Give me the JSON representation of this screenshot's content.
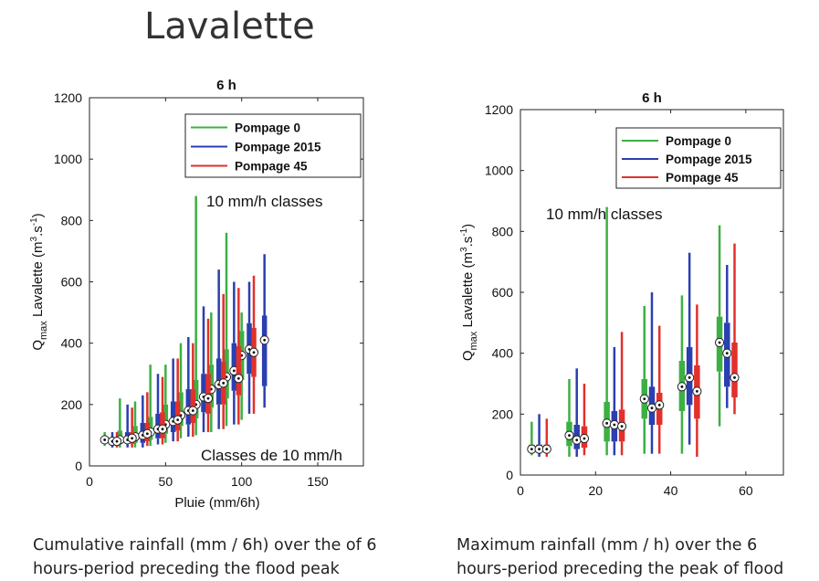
{
  "main_title": "Lavalette",
  "captions": {
    "left": [
      "Cumulative rainfall (mm / 6h) over the of 6",
      "hours-period preceding the  flood peak"
    ],
    "right": [
      "Maximum rainfall (mm / h) over the 6",
      "hours-period preceding the peak of flood"
    ]
  },
  "colors": {
    "Pompage 0": "#3cb043",
    "Pompage 2015": "#2a3fb0",
    "Pompage 45": "#e2302b"
  },
  "chart_data": [
    {
      "type": "box",
      "title": "6 h",
      "xlabel": "Pluie (mm/6h)",
      "ylabel_main": "Q",
      "ylabel_sub": "max",
      "ylabel_rest": " Lavalette (m",
      "ylabel_sup1": "3",
      "ylabel_mid": ".s",
      "ylabel_sup2": "-1",
      "ylabel_end": ")",
      "xlim": [
        0,
        180
      ],
      "ylim": [
        0,
        1200
      ],
      "xticks": [
        0,
        50,
        100,
        150
      ],
      "yticks": [
        0,
        200,
        400,
        600,
        800,
        1000,
        1200
      ],
      "annotations": [
        "10 mm/h classes",
        "Classes de 10 mm/h"
      ],
      "legend": {
        "placement": "top-right",
        "entries": [
          "Pompage 0",
          "Pompage 2015",
          "Pompage 45"
        ]
      },
      "series": [
        {
          "name": "Pompage 0",
          "boxes": [
            {
              "x": 10,
              "min": 65,
              "q1": 75,
              "median": 85,
              "q3": 95,
              "max": 110
            },
            {
              "x": 20,
              "min": 60,
              "q1": 72,
              "median": 85,
              "q3": 115,
              "max": 220
            },
            {
              "x": 30,
              "min": 60,
              "q1": 75,
              "median": 95,
              "q3": 130,
              "max": 210
            },
            {
              "x": 40,
              "min": 65,
              "q1": 85,
              "median": 110,
              "q3": 160,
              "max": 330
            },
            {
              "x": 50,
              "min": 75,
              "q1": 105,
              "median": 135,
              "q3": 200,
              "max": 330
            },
            {
              "x": 60,
              "min": 90,
              "q1": 130,
              "median": 165,
              "q3": 240,
              "max": 400
            },
            {
              "x": 70,
              "min": 100,
              "q1": 155,
              "median": 200,
              "q3": 280,
              "max": 880
            },
            {
              "x": 80,
              "min": 110,
              "q1": 190,
              "median": 250,
              "q3": 330,
              "max": 500
            },
            {
              "x": 90,
              "min": 130,
              "q1": 220,
              "median": 290,
              "q3": 380,
              "max": 760
            },
            {
              "x": 100,
              "min": 150,
              "q1": 280,
              "median": 360,
              "q3": 440,
              "max": 500
            }
          ]
        },
        {
          "name": "Pompage 2015",
          "boxes": [
            {
              "x": 15,
              "min": 60,
              "q1": 72,
              "median": 80,
              "q3": 92,
              "max": 110
            },
            {
              "x": 25,
              "min": 60,
              "q1": 72,
              "median": 85,
              "q3": 110,
              "max": 200
            },
            {
              "x": 35,
              "min": 60,
              "q1": 75,
              "median": 100,
              "q3": 140,
              "max": 230
            },
            {
              "x": 45,
              "min": 70,
              "q1": 90,
              "median": 120,
              "q3": 170,
              "max": 300
            },
            {
              "x": 55,
              "min": 80,
              "q1": 110,
              "median": 145,
              "q3": 210,
              "max": 350
            },
            {
              "x": 65,
              "min": 95,
              "q1": 135,
              "median": 180,
              "q3": 250,
              "max": 420
            },
            {
              "x": 75,
              "min": 110,
              "q1": 175,
              "median": 225,
              "q3": 300,
              "max": 520
            },
            {
              "x": 85,
              "min": 120,
              "q1": 200,
              "median": 265,
              "q3": 350,
              "max": 640
            },
            {
              "x": 95,
              "min": 135,
              "q1": 245,
              "median": 310,
              "q3": 400,
              "max": 600
            },
            {
              "x": 105,
              "min": 170,
              "q1": 300,
              "median": 380,
              "q3": 465,
              "max": 600
            },
            {
              "x": 115,
              "min": 190,
              "q1": 260,
              "median": 410,
              "q3": 490,
              "max": 690
            }
          ]
        },
        {
          "name": "Pompage 45",
          "boxes": [
            {
              "x": 18,
              "min": 60,
              "q1": 70,
              "median": 80,
              "q3": 92,
              "max": 110
            },
            {
              "x": 28,
              "min": 60,
              "q1": 72,
              "median": 90,
              "q3": 110,
              "max": 190
            },
            {
              "x": 38,
              "min": 65,
              "q1": 80,
              "median": 105,
              "q3": 140,
              "max": 240
            },
            {
              "x": 48,
              "min": 70,
              "q1": 90,
              "median": 120,
              "q3": 175,
              "max": 290
            },
            {
              "x": 58,
              "min": 80,
              "q1": 115,
              "median": 150,
              "q3": 210,
              "max": 350
            },
            {
              "x": 68,
              "min": 95,
              "q1": 140,
              "median": 180,
              "q3": 250,
              "max": 400
            },
            {
              "x": 78,
              "min": 110,
              "q1": 170,
              "median": 220,
              "q3": 300,
              "max": 480
            },
            {
              "x": 88,
              "min": 120,
              "q1": 200,
              "median": 270,
              "q3": 340,
              "max": 560
            },
            {
              "x": 98,
              "min": 135,
              "q1": 230,
              "median": 285,
              "q3": 390,
              "max": 580
            },
            {
              "x": 108,
              "min": 170,
              "q1": 290,
              "median": 370,
              "q3": 450,
              "max": 620
            }
          ]
        }
      ]
    },
    {
      "type": "box",
      "title": "6 h",
      "xlabel": "",
      "ylabel_main": "Q",
      "ylabel_sub": "max",
      "ylabel_rest": " Lavalette (m",
      "ylabel_sup1": "3",
      "ylabel_mid": ".s",
      "ylabel_sup2": "-1",
      "ylabel_end": ")",
      "xlim": [
        0,
        70
      ],
      "ylim": [
        0,
        1200
      ],
      "xticks": [
        0,
        20,
        40,
        60
      ],
      "yticks": [
        0,
        200,
        400,
        600,
        800,
        1000,
        1200
      ],
      "annotations": [
        "10 mm/h classes"
      ],
      "legend": {
        "placement": "top-right",
        "entries": [
          "Pompage 0",
          "Pompage 2015",
          "Pompage 45"
        ]
      },
      "series": [
        {
          "name": "Pompage 0",
          "boxes": [
            {
              "x": 3,
              "min": 65,
              "q1": 75,
              "median": 85,
              "q3": 100,
              "max": 175
            },
            {
              "x": 13,
              "min": 60,
              "q1": 95,
              "median": 130,
              "q3": 175,
              "max": 315
            },
            {
              "x": 23,
              "min": 65,
              "q1": 110,
              "median": 170,
              "q3": 240,
              "max": 880
            },
            {
              "x": 33,
              "min": 70,
              "q1": 185,
              "median": 250,
              "q3": 315,
              "max": 555
            },
            {
              "x": 43,
              "min": 70,
              "q1": 210,
              "median": 290,
              "q3": 375,
              "max": 590
            },
            {
              "x": 53,
              "min": 160,
              "q1": 340,
              "median": 435,
              "q3": 520,
              "max": 820
            }
          ]
        },
        {
          "name": "Pompage 2015",
          "boxes": [
            {
              "x": 5,
              "min": 60,
              "q1": 75,
              "median": 85,
              "q3": 100,
              "max": 200
            },
            {
              "x": 15,
              "min": 60,
              "q1": 85,
              "median": 115,
              "q3": 165,
              "max": 350
            },
            {
              "x": 25,
              "min": 65,
              "q1": 110,
              "median": 165,
              "q3": 210,
              "max": 420
            },
            {
              "x": 35,
              "min": 70,
              "q1": 165,
              "median": 220,
              "q3": 290,
              "max": 600
            },
            {
              "x": 45,
              "min": 100,
              "q1": 230,
              "median": 320,
              "q3": 420,
              "max": 730
            },
            {
              "x": 55,
              "min": 220,
              "q1": 290,
              "median": 400,
              "q3": 500,
              "max": 690
            }
          ]
        },
        {
          "name": "Pompage 45",
          "boxes": [
            {
              "x": 7,
              "min": 60,
              "q1": 75,
              "median": 85,
              "q3": 100,
              "max": 185
            },
            {
              "x": 17,
              "min": 65,
              "q1": 90,
              "median": 120,
              "q3": 160,
              "max": 300
            },
            {
              "x": 27,
              "min": 65,
              "q1": 110,
              "median": 160,
              "q3": 215,
              "max": 470
            },
            {
              "x": 37,
              "min": 70,
              "q1": 165,
              "median": 230,
              "q3": 270,
              "max": 490
            },
            {
              "x": 47,
              "min": 60,
              "q1": 185,
              "median": 275,
              "q3": 360,
              "max": 560
            },
            {
              "x": 57,
              "min": 200,
              "q1": 255,
              "median": 320,
              "q3": 435,
              "max": 760
            }
          ]
        }
      ]
    }
  ]
}
